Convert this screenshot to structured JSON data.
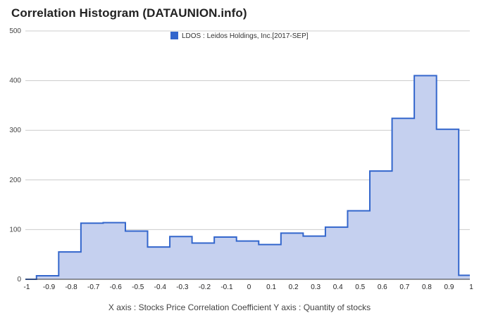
{
  "title": "Correlation Histogram (DATAUNION.info)",
  "caption": "X axis : Stocks Price Correlation Coefficient  Y axis : Quantity of stocks",
  "colors": {
    "line": "#3366cc",
    "fill": "#c5d0ef",
    "grid": "#cccccc"
  },
  "chart_data": {
    "type": "area",
    "series": [
      {
        "name": "LDOS : Leidos Holdings, Inc.[2017-SEP]",
        "x": [
          -1,
          -0.9,
          -0.8,
          -0.7,
          -0.6,
          -0.5,
          -0.4,
          -0.3,
          -0.2,
          -0.1,
          0,
          0.1,
          0.2,
          0.3,
          0.4,
          0.5,
          0.6,
          0.7,
          0.8,
          0.9,
          1
        ],
        "values": [
          0,
          7,
          55,
          113,
          114,
          97,
          65,
          86,
          73,
          85,
          77,
          70,
          93,
          87,
          105,
          138,
          218,
          324,
          410,
          302,
          8
        ]
      }
    ],
    "xlabel": "X axis : Stocks Price Correlation Coefficient",
    "ylabel": "Y axis : Quantity of stocks",
    "xticks": [
      "-1",
      "-0.9",
      "-0.8",
      "-0.7",
      "-0.6",
      "-0.5",
      "-0.4",
      "-0.3",
      "-0.2",
      "-0.1",
      "0",
      "0.1",
      "0.2",
      "0.3",
      "0.4",
      "0.5",
      "0.6",
      "0.7",
      "0.8",
      "0.9",
      "1"
    ],
    "yticks": [
      "0",
      "100",
      "200",
      "300",
      "400",
      "500"
    ],
    "xlim": [
      -1,
      1
    ],
    "ylim": [
      0,
      500
    ],
    "grid": true,
    "legend": "top-center"
  }
}
